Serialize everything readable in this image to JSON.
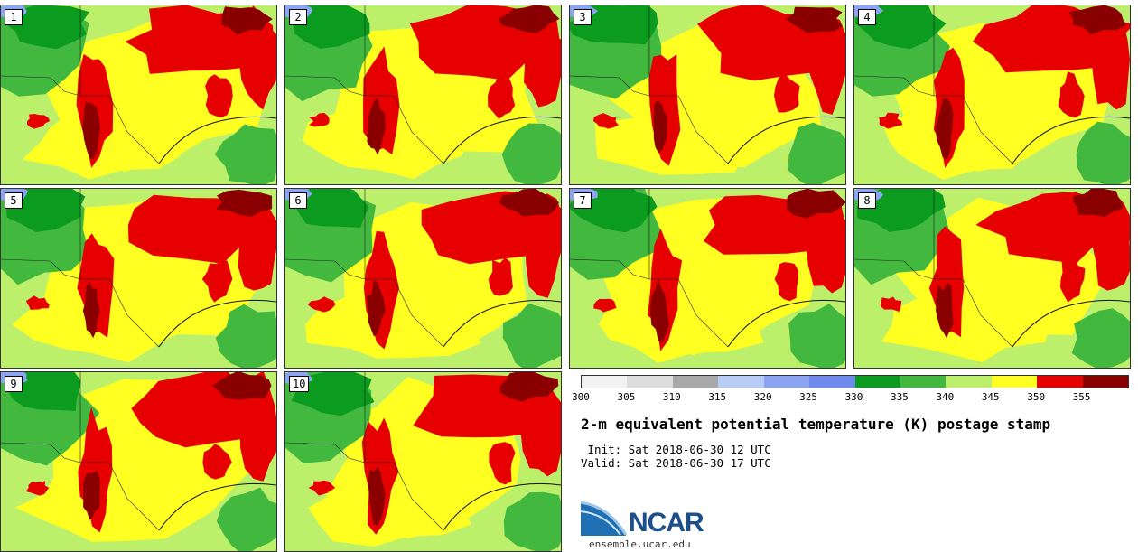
{
  "figure": {
    "title": "2-m equivalent potential temperature (K) postage stamp",
    "init_line": " Init: Sat 2018-06-30 12 UTC",
    "valid_line": "Valid: Sat 2018-06-30 17 UTC"
  },
  "colorbar": {
    "ticks": [
      "300",
      "305",
      "310",
      "315",
      "320",
      "325",
      "330",
      "335",
      "340",
      "345",
      "350",
      "355"
    ],
    "colors": [
      "#f2f2f2",
      "#dcdcdc",
      "#a9a9a9",
      "#b8ccf5",
      "#8ca4f2",
      "#6e8aee",
      "#0a9b1f",
      "#43b83e",
      "#bdf06a",
      "#ffff22",
      "#e60000",
      "#8a0000"
    ]
  },
  "members": [
    "1",
    "2",
    "3",
    "4",
    "5",
    "6",
    "7",
    "8",
    "9",
    "10"
  ],
  "logo": {
    "name": "NCAR",
    "url": "ensemble.ucar.edu"
  }
}
